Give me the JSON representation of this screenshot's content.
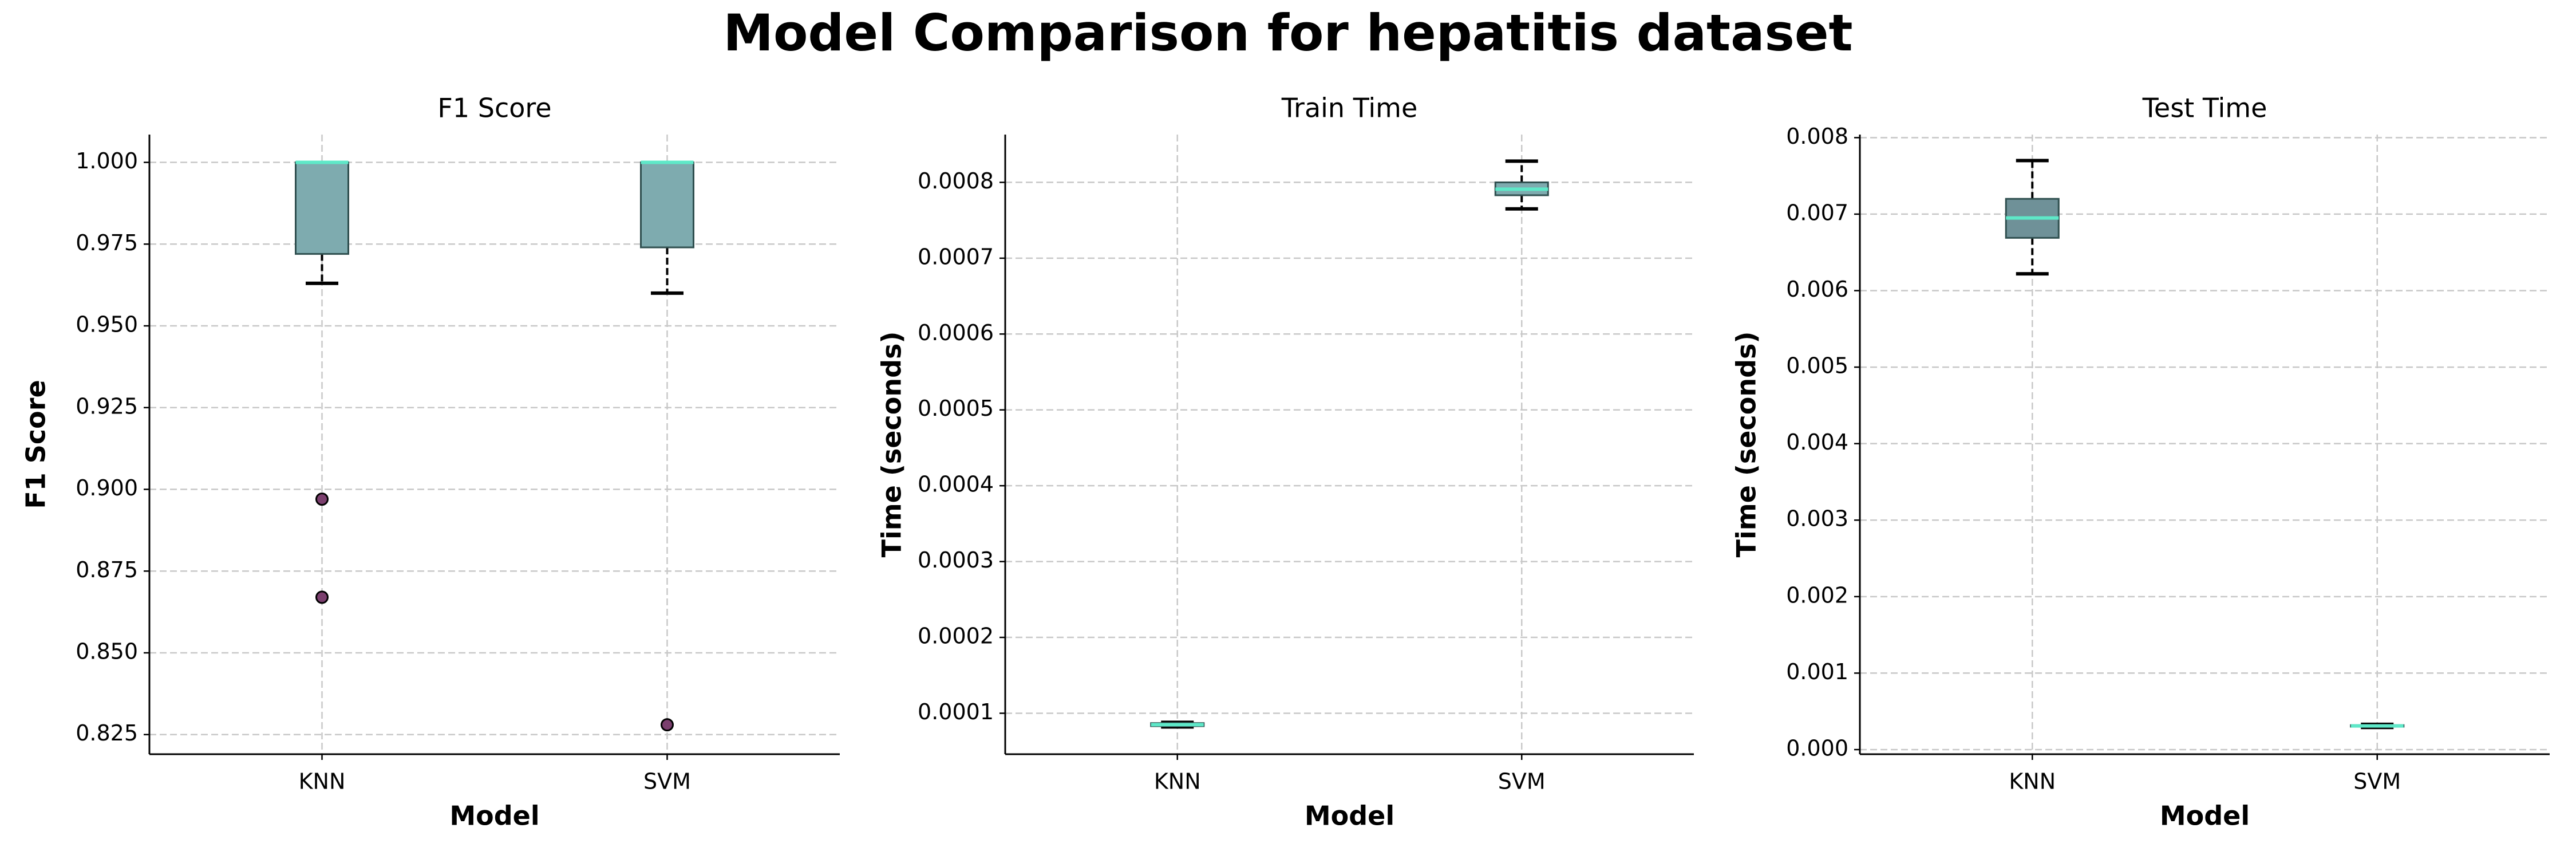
{
  "title": "Model Comparison for hepatitis dataset",
  "chart_data": [
    {
      "type": "box",
      "title": "F1 Score",
      "x_label": "Model",
      "y_label": "F1 Score",
      "categories": [
        "KNN",
        "SVM"
      ],
      "boxes": [
        {
          "whislo": 0.963,
          "q1": 0.972,
          "med": 1.0,
          "q3": 1.0,
          "whishi": 1.0,
          "fliers": [
            0.897,
            0.867
          ]
        },
        {
          "whislo": 0.96,
          "q1": 0.974,
          "med": 1.0,
          "q3": 1.0,
          "whishi": 1.0,
          "fliers": [
            0.828
          ]
        }
      ],
      "box_color": "#7eabaf",
      "median_color": "#5ee8c8",
      "flier_color": "#7b3f6e",
      "ylim": [
        0.819,
        1.0085
      ],
      "yticks": [
        0.825,
        {
          "value": 0.85,
          "label": "0.850"
        },
        0.875,
        {
          "value": 0.9,
          "label": "0.900"
        },
        0.925,
        {
          "value": 0.95,
          "label": "0.950"
        },
        0.975,
        {
          "value": 1.0,
          "label": "1.000"
        }
      ],
      "grid": true
    },
    {
      "type": "box",
      "title": "Train Time",
      "x_label": "Model",
      "y_label": "Time (seconds)",
      "categories": [
        "KNN",
        "SVM"
      ],
      "boxes": [
        {
          "whislo": 8.2e-05,
          "q1": 8.3e-05,
          "med": 8.5e-05,
          "q3": 8.7e-05,
          "whishi": 8.8e-05,
          "fliers": []
        },
        {
          "whislo": 0.000765,
          "q1": 0.000783,
          "med": 0.000791,
          "q3": 0.0008,
          "whishi": 0.000828,
          "fliers": []
        }
      ],
      "box_color": "#7eabaf",
      "median_color": "#5ee8c8",
      "flier_color": "#7b3f6e",
      "ylim": [
        4.6e-05,
        0.000863
      ],
      "yticks": [
        0.0001,
        0.0002,
        0.0003,
        0.0004,
        0.0005,
        0.0006,
        0.0007,
        0.0008
      ],
      "grid": true
    },
    {
      "type": "box",
      "title": "Test Time",
      "x_label": "Model",
      "y_label": "Time (seconds)",
      "categories": [
        "KNN",
        "SVM"
      ],
      "boxes": [
        {
          "whislo": 0.00622,
          "q1": 0.00669,
          "med": 0.00695,
          "q3": 0.0072,
          "whishi": 0.0077,
          "fliers": []
        },
        {
          "whislo": 0.00029,
          "q1": 0.0003,
          "med": 0.00031,
          "q3": 0.00032,
          "whishi": 0.00033,
          "fliers": []
        }
      ],
      "box_color": "#6f9198",
      "median_color": "#5ee8c8",
      "flier_color": "#7b3f6e",
      "ylim": [
        -6e-05,
        0.00804
      ],
      "yticks": [
        {
          "value": 0,
          "label": "0.000"
        },
        0.001,
        0.002,
        0.003,
        0.004,
        0.005,
        0.006,
        0.007,
        0.008
      ],
      "grid": true
    }
  ]
}
